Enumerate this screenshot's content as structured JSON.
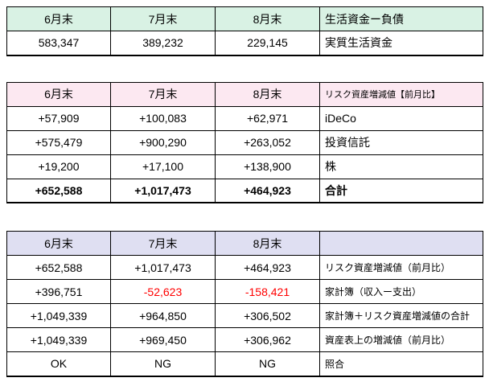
{
  "colors": {
    "header-green": "#d9f2e4",
    "header-pink": "#fce8f1",
    "header-purple": "#dfdff2",
    "negative": "#ff0000",
    "grid": "#000000"
  },
  "table1": {
    "headers": [
      "6月末",
      "7月末",
      "8月末",
      "生活資金ー負債"
    ],
    "rows": [
      [
        "583,347",
        "389,232",
        "229,145",
        "実質生活資金"
      ]
    ]
  },
  "table2": {
    "headers": [
      "6月末",
      "7月末",
      "8月末",
      "リスク資産増減値【前月比】"
    ],
    "rows": [
      [
        "+57,909",
        "+100,083",
        "+62,971",
        "iDeCo"
      ],
      [
        "+575,479",
        "+900,290",
        "+263,052",
        "投資信託"
      ],
      [
        "+19,200",
        "+17,100",
        "+138,900",
        "株"
      ],
      [
        "+652,588",
        "+1,017,473",
        "+464,923",
        "合計"
      ]
    ]
  },
  "table3": {
    "headers": [
      "6月末",
      "7月末",
      "8月末",
      ""
    ],
    "rows": [
      [
        "+652,588",
        "+1,017,473",
        "+464,923",
        "リスク資産増減値（前月比）"
      ],
      [
        "+396,751",
        "-52,623",
        "-158,421",
        "家計簿（収入ー支出）"
      ],
      [
        "+1,049,339",
        "+964,850",
        "+306,502",
        "家計簿＋リスク資産増減値の合計"
      ],
      [
        "+1,049,339",
        "+969,450",
        "+306,962",
        "資産表上の増減値（前月比）"
      ],
      [
        "OK",
        "NG",
        "NG",
        "照合"
      ]
    ]
  }
}
